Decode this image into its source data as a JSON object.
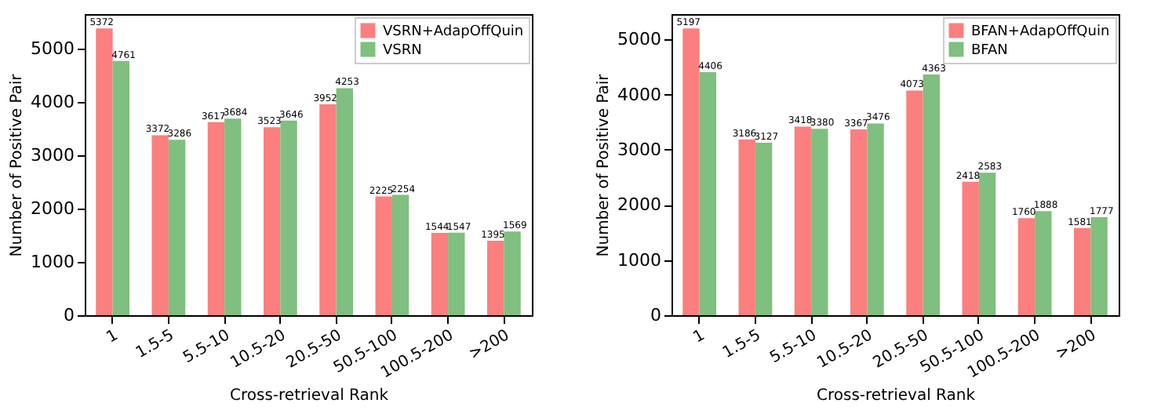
{
  "chart_data": [
    {
      "type": "bar",
      "xlabel": "Cross-retrieval Rank",
      "ylabel": "Number of Positive Pair",
      "categories": [
        "1",
        "1.5-5",
        "5.5-10",
        "10.5-20",
        "20.5-50",
        "50.5-100",
        "100.5-200",
        ">200"
      ],
      "series": [
        {
          "name": "VSRN+AdapOffQuin",
          "color": "#fb7f7f",
          "values": [
            5372,
            3372,
            3617,
            3523,
            3952,
            2225,
            1544,
            1395
          ]
        },
        {
          "name": "VSRN",
          "color": "#7fbf7f",
          "values": [
            4761,
            3286,
            3684,
            3646,
            4253,
            2254,
            1547,
            1569
          ]
        }
      ],
      "ylim": [
        0,
        5640
      ],
      "yticks": [
        0,
        1000,
        2000,
        3000,
        4000,
        5000
      ],
      "data_labels": true,
      "legend": "top right",
      "grid": false
    },
    {
      "type": "bar",
      "xlabel": "Cross-retrieval Rank",
      "ylabel": "Number of Positive Pair",
      "categories": [
        "1",
        "1.5-5",
        "5.5-10",
        "10.5-20",
        "20.5-50",
        "50.5-100",
        "100.5-200",
        ">200"
      ],
      "series": [
        {
          "name": "BFAN+AdapOffQuin",
          "color": "#fb7f7f",
          "values": [
            5197,
            3186,
            3418,
            3367,
            4073,
            2418,
            1760,
            1581
          ]
        },
        {
          "name": "BFAN",
          "color": "#7fbf7f",
          "values": [
            4406,
            3127,
            3380,
            3476,
            4363,
            2583,
            1888,
            1777
          ]
        }
      ],
      "ylim": [
        0,
        5457
      ],
      "yticks": [
        0,
        1000,
        2000,
        3000,
        4000,
        5000
      ],
      "data_labels": true,
      "legend": "top right",
      "grid": false
    }
  ]
}
